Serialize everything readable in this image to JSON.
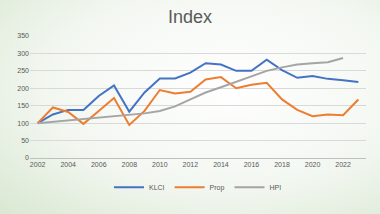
{
  "chart_data": {
    "type": "line",
    "title": "Index",
    "x": [
      2002,
      2003,
      2004,
      2005,
      2006,
      2007,
      2008,
      2009,
      2010,
      2011,
      2012,
      2013,
      2014,
      2015,
      2016,
      2017,
      2018,
      2019,
      2020,
      2021,
      2022,
      2023
    ],
    "series": [
      {
        "name": "KLCI",
        "color": "#4472c4",
        "values": [
          100,
          125,
          138,
          138,
          178,
          208,
          133,
          188,
          228,
          228,
          245,
          272,
          268,
          250,
          250,
          282,
          252,
          230,
          235,
          227,
          223,
          218
        ]
      },
      {
        "name": "Prop",
        "color": "#ed7d31",
        "values": [
          100,
          145,
          132,
          98,
          135,
          172,
          95,
          135,
          195,
          185,
          190,
          225,
          232,
          200,
          210,
          216,
          168,
          138,
          120,
          125,
          123,
          168
        ]
      },
      {
        "name": "HPI",
        "color": "#a5a5a5",
        "values": [
          100,
          104,
          108,
          112,
          114,
          118,
          123,
          128,
          135,
          148,
          168,
          188,
          203,
          218,
          235,
          250,
          260,
          268,
          272,
          275,
          287,
          null
        ]
      }
    ],
    "xlim": [
      2001.5,
      2023.5
    ],
    "xticks": [
      2002,
      2004,
      2006,
      2008,
      2010,
      2012,
      2014,
      2016,
      2018,
      2020,
      2022
    ],
    "ylim": [
      0,
      350
    ],
    "yticks": [
      0,
      50,
      100,
      150,
      200,
      250,
      300,
      350
    ],
    "grid": true,
    "legend": "bottom"
  }
}
